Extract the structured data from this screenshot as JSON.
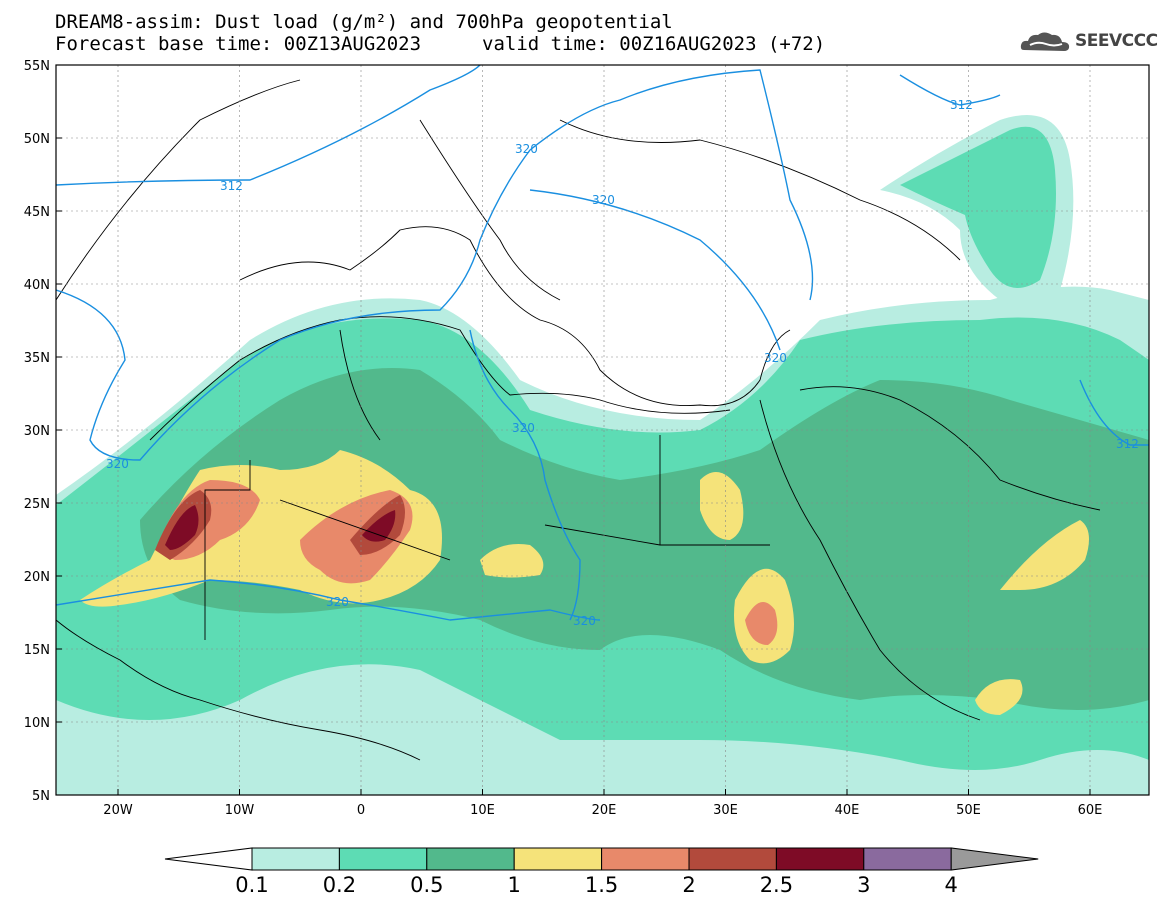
{
  "title_line1": "DREAM8-assim: Dust load (g/m²) and 700hPa geopotential",
  "title_line2_left": "Forecast base time: 00Z13AUG2023",
  "title_line2_right": "valid time: 00Z16AUG2023 (+72)",
  "logo_text": "SEEVCCC",
  "lat_labels": [
    "55N",
    "50N",
    "45N",
    "40N",
    "35N",
    "30N",
    "25N",
    "20N",
    "15N",
    "10N",
    "5N"
  ],
  "lon_labels": [
    "20W",
    "10W",
    "0",
    "10E",
    "20E",
    "30E",
    "40E",
    "50E",
    "60E"
  ],
  "colorbar": {
    "colors": [
      "#ffffff",
      "#b8ede1",
      "#5ddcb4",
      "#52b98c",
      "#f5e37a",
      "#e8896a",
      "#b24a3c",
      "#7e0b26",
      "#8a6a9e",
      "#9a9a9a"
    ],
    "labels": [
      "0.1",
      "0.2",
      "0.5",
      "1",
      "1.5",
      "2",
      "2.5",
      "3",
      "4"
    ]
  },
  "contour_labels": [
    {
      "text": "312"
    },
    {
      "text": "312"
    },
    {
      "text": "320"
    },
    {
      "text": "320"
    },
    {
      "text": "320"
    },
    {
      "text": "320"
    },
    {
      "text": "320"
    },
    {
      "text": "320"
    },
    {
      "text": "320"
    },
    {
      "text": "312"
    }
  ],
  "contour_color": "#1a8fe0"
}
